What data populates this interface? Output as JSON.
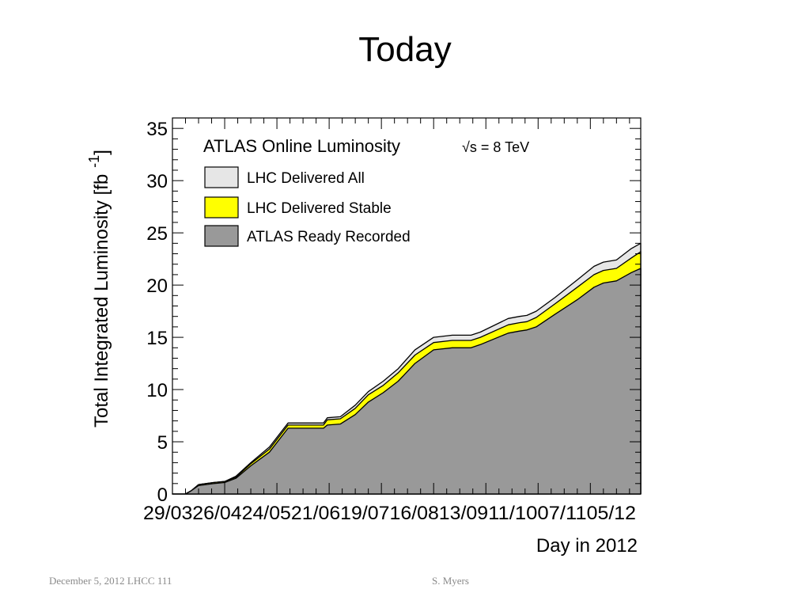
{
  "slide": {
    "title": "Today",
    "footer_left": "December 5, 2012  LHCC 111",
    "footer_right": "S. Myers"
  },
  "chart_data": {
    "type": "area",
    "title": "ATLAS Online Luminosity",
    "energy_label": "√s = 8 TeV",
    "ylabel": "Total Integrated Luminosity [fb",
    "ylabel_superscript": "-1",
    "ylabel_close": "]",
    "xlabel": "Day in 2012",
    "ylim": [
      0,
      36
    ],
    "xlim": [
      "2012-03-29",
      "2012-12-05"
    ],
    "yticks": [
      0,
      5,
      10,
      15,
      20,
      25,
      30,
      35
    ],
    "xtick_labels": [
      "29/03",
      "26/04",
      "24/05",
      "21/06",
      "19/07",
      "16/08",
      "13/09",
      "11/10",
      "07/11",
      "05/12"
    ],
    "x": [
      "2012-03-29",
      "2012-04-05",
      "2012-04-08",
      "2012-04-12",
      "2012-04-20",
      "2012-04-26",
      "2012-05-02",
      "2012-05-10",
      "2012-05-20",
      "2012-05-30",
      "2012-06-08",
      "2012-06-18",
      "2012-06-20",
      "2012-06-27",
      "2012-07-05",
      "2012-07-12",
      "2012-07-20",
      "2012-07-28",
      "2012-08-06",
      "2012-08-16",
      "2012-08-26",
      "2012-09-05",
      "2012-09-10",
      "2012-09-25",
      "2012-10-01",
      "2012-10-05",
      "2012-10-10",
      "2012-10-20",
      "2012-11-01",
      "2012-11-10",
      "2012-11-15",
      "2012-11-22",
      "2012-11-30",
      "2012-12-05"
    ],
    "series": [
      {
        "name": "LHC Delivered All",
        "color": "#e6e6e6",
        "values": [
          0,
          0,
          0.3,
          0.9,
          1.1,
          1.2,
          1.7,
          3.0,
          4.5,
          6.8,
          6.8,
          6.8,
          7.3,
          7.4,
          8.5,
          9.8,
          10.8,
          12.0,
          13.8,
          15.0,
          15.2,
          15.2,
          15.5,
          16.8,
          17.0,
          17.1,
          17.5,
          18.8,
          20.5,
          21.8,
          22.2,
          22.4,
          23.5,
          24.0
        ]
      },
      {
        "name": "LHC Delivered Stable",
        "color": "#ffff00",
        "values": [
          0,
          0,
          0.3,
          0.9,
          1.1,
          1.2,
          1.6,
          2.9,
          4.3,
          6.6,
          6.6,
          6.6,
          7.1,
          7.2,
          8.2,
          9.5,
          10.4,
          11.6,
          13.3,
          14.5,
          14.7,
          14.7,
          15.0,
          16.2,
          16.4,
          16.5,
          16.9,
          18.2,
          19.8,
          21.0,
          21.4,
          21.6,
          22.6,
          23.2
        ]
      },
      {
        "name": "ATLAS Ready Recorded",
        "color": "#999999",
        "values": [
          0,
          0,
          0.3,
          0.8,
          1.0,
          1.1,
          1.5,
          2.7,
          4.0,
          6.3,
          6.3,
          6.3,
          6.6,
          6.7,
          7.6,
          8.8,
          9.7,
          10.8,
          12.5,
          13.8,
          14.0,
          14.0,
          14.3,
          15.4,
          15.6,
          15.7,
          16.0,
          17.2,
          18.6,
          19.8,
          20.2,
          20.4,
          21.2,
          21.6
        ]
      }
    ],
    "legend_position": "top-left",
    "grid": false
  }
}
